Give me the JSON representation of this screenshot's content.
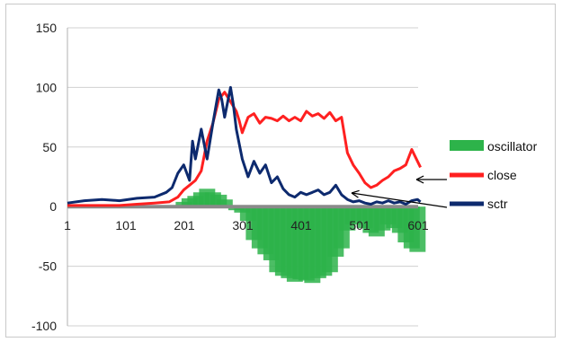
{
  "chart_data": {
    "type": "line",
    "title": "",
    "xlabel": "",
    "ylabel": "",
    "ylim": [
      -100,
      150
    ],
    "xlim": [
      1,
      601
    ],
    "yticks": [
      "150",
      "100",
      "50",
      "0",
      "-50",
      "-100"
    ],
    "xticks": [
      "1",
      "101",
      "201",
      "301",
      "401",
      "501",
      "601"
    ],
    "grid": "horizontal",
    "legend_position": "right",
    "series": [
      {
        "name": "oscillator",
        "type": "area",
        "color": "#2db34a",
        "x": [
          1,
          30,
          60,
          90,
          120,
          150,
          170,
          190,
          200,
          210,
          220,
          230,
          240,
          250,
          260,
          270,
          280,
          290,
          300,
          310,
          320,
          330,
          340,
          350,
          360,
          370,
          380,
          390,
          400,
          410,
          420,
          430,
          440,
          450,
          460,
          470,
          480,
          490,
          500,
          510,
          520,
          530,
          540,
          550,
          560,
          570,
          580,
          590,
          600
        ],
        "values": [
          0,
          0,
          0,
          0,
          0,
          0,
          0,
          1,
          4,
          7,
          9,
          12,
          15,
          12,
          10,
          6,
          0,
          -3,
          -5,
          -12,
          -28,
          -35,
          -40,
          -45,
          -55,
          -58,
          -60,
          -63,
          -61,
          -62,
          -64,
          -60,
          -58,
          -55,
          -42,
          -35,
          -20,
          -15,
          -12,
          -18,
          -22,
          -25,
          -20,
          -15,
          -18,
          -22,
          -30,
          -35,
          -38
        ]
      },
      {
        "name": "close",
        "type": "line",
        "color": "#ff2020",
        "x": [
          1,
          30,
          60,
          90,
          120,
          150,
          175,
          190,
          200,
          210,
          220,
          230,
          240,
          250,
          260,
          270,
          280,
          290,
          295,
          300,
          310,
          320,
          330,
          340,
          350,
          360,
          370,
          380,
          390,
          400,
          410,
          420,
          430,
          440,
          450,
          460,
          470,
          480,
          490,
          500,
          510,
          520,
          530,
          540,
          550,
          560,
          570,
          580,
          590,
          600,
          605
        ],
        "values": [
          1,
          1,
          1,
          1,
          2,
          3,
          4,
          8,
          14,
          18,
          22,
          30,
          55,
          70,
          90,
          96,
          88,
          80,
          72,
          62,
          75,
          78,
          70,
          75,
          74,
          72,
          76,
          72,
          75,
          72,
          80,
          76,
          78,
          74,
          79,
          72,
          75,
          45,
          35,
          28,
          20,
          16,
          18,
          22,
          25,
          30,
          32,
          35,
          48,
          38,
          33
        ]
      },
      {
        "name": "sctr",
        "type": "line",
        "color": "#0d2a6e",
        "x": [
          1,
          30,
          60,
          90,
          120,
          150,
          170,
          180,
          190,
          200,
          210,
          215,
          220,
          230,
          240,
          250,
          260,
          265,
          270,
          280,
          285,
          290,
          300,
          310,
          320,
          330,
          340,
          350,
          360,
          370,
          380,
          390,
          400,
          410,
          420,
          430,
          440,
          450,
          460,
          470,
          480,
          490,
          500,
          510,
          520,
          530,
          540,
          550,
          560,
          570,
          580,
          590,
          600,
          605
        ],
        "values": [
          3,
          5,
          6,
          5,
          7,
          8,
          12,
          16,
          28,
          35,
          22,
          55,
          40,
          65,
          40,
          70,
          98,
          90,
          75,
          100,
          85,
          65,
          40,
          25,
          38,
          28,
          35,
          20,
          25,
          15,
          10,
          8,
          12,
          10,
          12,
          14,
          10,
          12,
          18,
          10,
          6,
          4,
          5,
          3,
          2,
          4,
          3,
          5,
          3,
          4,
          2,
          5,
          6,
          4
        ]
      }
    ]
  }
}
